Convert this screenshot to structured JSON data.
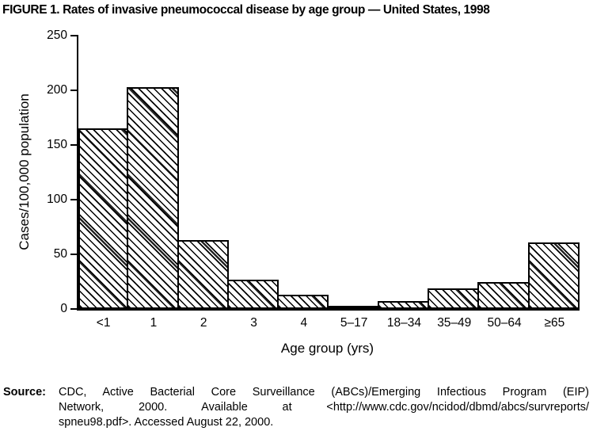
{
  "title": "FIGURE 1. Rates of invasive pneumococcal disease by age group — United States, 1998",
  "source": {
    "label": "Source:",
    "lines": [
      "CDC, Active Bacterial Core Surveillance (ABCs)/Emerging Infectious Program (EIP)",
      "Network, 2000. Available at <http://www.cdc.gov/ncidod/dbmd/abcs/survreports/",
      "spneu98.pdf>. Accessed August 22, 2000."
    ]
  },
  "chart_data": {
    "type": "bar",
    "title": "FIGURE 1. Rates of invasive pneumococcal disease by age group — United States, 1998",
    "categories": [
      "<1",
      "1",
      "2",
      "3",
      "4",
      "5–17",
      "18–34",
      "35–49",
      "50–64",
      "≥65"
    ],
    "values": [
      165,
      203,
      63,
      27,
      13,
      3,
      7,
      19,
      25,
      61
    ],
    "xlabel": "Age group (yrs)",
    "ylabel": "Cases/100,000 population",
    "ylim": [
      0,
      250
    ],
    "yticks": [
      0,
      50,
      100,
      150,
      200,
      250
    ],
    "grid": false,
    "legend": "none",
    "bar_style": "diagonal-hatch"
  }
}
